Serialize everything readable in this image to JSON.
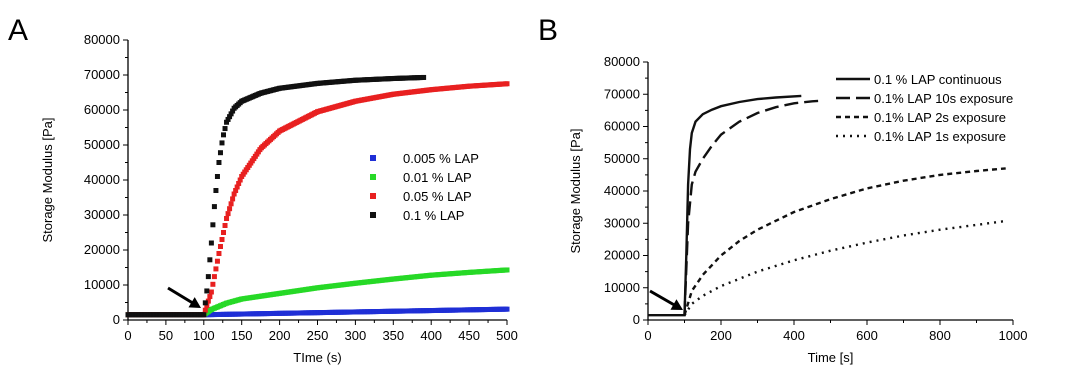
{
  "chart_data": [
    {
      "panel": "A",
      "type": "scatter",
      "xlabel": "TIme (s)",
      "ylabel": "Storage Modulus [Pa]",
      "xlim": [
        0,
        500
      ],
      "ylim": [
        0,
        80000
      ],
      "xticks": [
        "0",
        "50",
        "100",
        "150",
        "200",
        "250",
        "300",
        "350",
        "400",
        "450",
        "500"
      ],
      "yticks": [
        "0",
        "10000",
        "20000",
        "30000",
        "40000",
        "50000",
        "60000",
        "70000",
        "80000"
      ],
      "legend_position": "right-center",
      "grid": false,
      "series": [
        {
          "name": "0.005 % LAP",
          "color": "#1f2fd6",
          "x": [
            0,
            100,
            150,
            200,
            300,
            400,
            500
          ],
          "y": [
            1500,
            1500,
            1700,
            1900,
            2300,
            2700,
            3100
          ]
        },
        {
          "name": "0.01 % LAP",
          "color": "#27d927",
          "x": [
            0,
            100,
            110,
            130,
            150,
            200,
            250,
            300,
            350,
            400,
            450,
            500
          ],
          "y": [
            1500,
            1500,
            3000,
            4800,
            6000,
            7600,
            9200,
            10500,
            11700,
            12800,
            13600,
            14300
          ]
        },
        {
          "name": "0.05 % LAP",
          "color": "#e82020",
          "x": [
            0,
            100,
            110,
            120,
            130,
            140,
            150,
            175,
            200,
            250,
            300,
            350,
            400,
            450,
            500
          ],
          "y": [
            1500,
            1500,
            8000,
            19000,
            29000,
            36000,
            41000,
            49000,
            54000,
            59500,
            62500,
            64500,
            65800,
            66800,
            67500
          ]
        },
        {
          "name": "0.1 % LAP",
          "color": "#111111",
          "x": [
            0,
            100,
            105,
            110,
            115,
            120,
            125,
            130,
            140,
            150,
            175,
            200,
            250,
            300,
            350,
            390
          ],
          "y": [
            1500,
            1500,
            10000,
            22000,
            35000,
            45000,
            52000,
            56500,
            60500,
            62500,
            64800,
            66200,
            67600,
            68500,
            69000,
            69300
          ]
        }
      ]
    },
    {
      "panel": "B",
      "type": "line",
      "xlabel": "Time [s]",
      "ylabel": "Storage Modulus [Pa]",
      "xlim": [
        0,
        1000
      ],
      "ylim": [
        0,
        80000
      ],
      "xticks": [
        "0",
        "200",
        "400",
        "600",
        "800",
        "1000"
      ],
      "yticks": [
        "0",
        "10000",
        "20000",
        "30000",
        "40000",
        "50000",
        "60000",
        "70000",
        "80000"
      ],
      "legend_position": "top-right",
      "grid": false,
      "series": [
        {
          "name": "0.1 % LAP continuous",
          "dash": "solid",
          "x": [
            0,
            100,
            105,
            110,
            115,
            120,
            130,
            150,
            175,
            200,
            250,
            300,
            350,
            420
          ],
          "y": [
            1500,
            1500,
            20000,
            42000,
            53000,
            58000,
            61500,
            63800,
            65200,
            66300,
            67600,
            68500,
            69000,
            69500
          ]
        },
        {
          "name": "0.1% LAP 10s exposure",
          "dash": "long-dash",
          "x": [
            100,
            110,
            120,
            130,
            150,
            175,
            200,
            250,
            300,
            350,
            400,
            450,
            480
          ],
          "y": [
            1500,
            30000,
            42000,
            46000,
            50000,
            54000,
            57500,
            61500,
            64200,
            66000,
            67200,
            67800,
            68000
          ]
        },
        {
          "name": "0.1% LAP 2s exposure",
          "dash": "short-dash",
          "x": [
            100,
            120,
            150,
            200,
            250,
            300,
            400,
            500,
            600,
            700,
            800,
            900,
            980
          ],
          "y": [
            1500,
            9000,
            14000,
            20000,
            24500,
            28000,
            33500,
            37500,
            40800,
            43200,
            45000,
            46200,
            47000
          ]
        },
        {
          "name": "0.1% LAP 1s exposure",
          "dash": "dotted",
          "x": [
            100,
            120,
            150,
            200,
            300,
            400,
            500,
            600,
            700,
            800,
            900,
            980
          ],
          "y": [
            1500,
            5000,
            7500,
            10500,
            15000,
            18500,
            21500,
            24000,
            26200,
            28000,
            29500,
            30700
          ]
        }
      ]
    }
  ]
}
